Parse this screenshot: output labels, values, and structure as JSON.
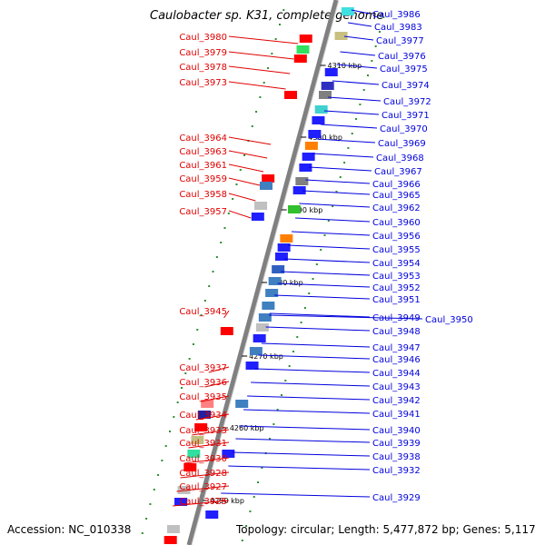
{
  "title": "Caulobacter sp. K31, complete genome",
  "footer": {
    "accession": "Accession: NC_010338",
    "summary": "Topology: circular; Length: 5,477,872 bp; Genes: 5,117"
  },
  "colors": {
    "forward_labels": "#e00000",
    "reverse_labels": "#0000dd",
    "backbone": "#808080"
  },
  "kbp_marks": [
    {
      "label": "4310 kbp"
    },
    {
      "label": "4300 kbp"
    },
    {
      "label": "4290 kbp"
    },
    {
      "label": "4280 kbp"
    },
    {
      "label": "4270 kbp"
    },
    {
      "label": "4260 kbp"
    },
    {
      "label": "4250 kbp"
    }
  ],
  "left_genes": [
    "Caul_3980",
    "Caul_3979",
    "Caul_3978",
    "Caul_3973",
    "Caul_3964",
    "Caul_3963",
    "Caul_3961",
    "Caul_3959",
    "Caul_3958",
    "Caul_3957",
    "Caul_3945",
    "Caul_3937",
    "Caul_3936",
    "Caul_3935",
    "Caul_3934",
    "Caul_3933",
    "Caul_3931",
    "Caul_3930",
    "Caul_3928",
    "Caul_3927",
    "Caul_3925"
  ],
  "right_genes": [
    "Caul_3986",
    "Caul_3983",
    "Caul_3977",
    "Caul_3976",
    "Caul_3975",
    "Caul_3974",
    "Caul_3972",
    "Caul_3971",
    "Caul_3970",
    "Caul_3969",
    "Caul_3968",
    "Caul_3967",
    "Caul_3966",
    "Caul_3965",
    "Caul_3962",
    "Caul_3960",
    "Caul_3956",
    "Caul_3955",
    "Caul_3954",
    "Caul_3953",
    "Caul_3952",
    "Caul_3951",
    "Caul_3949",
    "Caul_3950",
    "Caul_3948",
    "Caul_3947",
    "Caul_3946",
    "Caul_3944",
    "Caul_3943",
    "Caul_3942",
    "Caul_3941",
    "Caul_3940",
    "Caul_3939",
    "Caul_3938",
    "Caul_3932",
    "Caul_3929"
  ]
}
